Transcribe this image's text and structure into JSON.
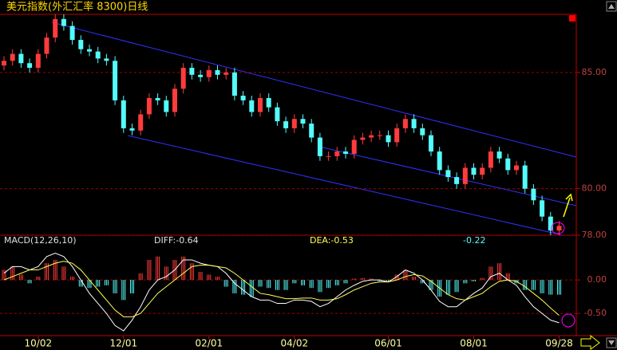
{
  "chart_data": [
    {
      "type": "candlestick",
      "title": "美元指数(外汇汇率 8300)日线",
      "open": [
        85.3,
        85.5,
        85.8,
        85.4,
        85.2,
        85.8,
        86.5,
        87.3,
        87.0,
        86.4,
        86.0,
        85.9,
        85.6,
        85.5,
        83.8,
        82.6,
        82.5,
        83.2,
        83.9,
        83.8,
        83.3,
        84.3,
        85.2,
        84.9,
        84.8,
        85.1,
        84.9,
        85.0,
        84.0,
        83.8,
        83.3,
        83.9,
        83.5,
        82.9,
        82.6,
        83.0,
        82.8,
        82.2,
        81.4,
        81.4,
        81.6,
        81.5,
        82.1,
        82.2,
        82.3,
        82.3,
        82.0,
        82.6,
        83.0,
        82.6,
        82.3,
        81.6,
        80.8,
        80.5,
        80.2,
        80.9,
        80.6,
        80.9,
        81.6,
        81.3,
        80.8,
        81.0,
        80.0,
        79.5,
        78.8,
        78.2
      ],
      "high": [
        85.7,
        86.0,
        86.0,
        85.6,
        86.0,
        86.7,
        87.5,
        87.5,
        87.2,
        86.6,
        86.2,
        86.1,
        85.8,
        85.7,
        84.0,
        82.8,
        83.4,
        84.1,
        84.1,
        84.0,
        84.5,
        85.4,
        85.4,
        85.1,
        85.3,
        85.3,
        85.2,
        85.2,
        84.2,
        84.0,
        84.1,
        84.1,
        83.7,
        83.1,
        83.2,
        83.2,
        83.0,
        82.4,
        81.6,
        81.8,
        81.8,
        82.3,
        82.4,
        82.5,
        82.5,
        82.5,
        82.8,
        83.2,
        83.2,
        82.8,
        82.5,
        81.8,
        81.0,
        80.7,
        81.1,
        81.1,
        81.1,
        81.8,
        81.8,
        81.5,
        81.2,
        81.2,
        80.2,
        79.7,
        79.0,
        78.6
      ],
      "low": [
        85.1,
        85.3,
        85.2,
        85.0,
        85.0,
        85.6,
        86.3,
        86.8,
        86.2,
        85.8,
        85.7,
        85.4,
        85.3,
        83.6,
        82.4,
        82.3,
        82.3,
        83.0,
        83.6,
        83.1,
        83.1,
        84.1,
        84.7,
        84.6,
        84.6,
        84.7,
        84.7,
        83.8,
        83.6,
        83.1,
        83.1,
        83.3,
        82.7,
        82.4,
        82.4,
        82.6,
        82.0,
        81.2,
        81.2,
        81.2,
        81.3,
        81.3,
        81.9,
        82.0,
        82.1,
        81.8,
        81.8,
        82.4,
        82.4,
        82.1,
        81.4,
        80.6,
        80.3,
        80.0,
        80.0,
        80.4,
        80.4,
        80.7,
        81.1,
        80.6,
        80.6,
        79.8,
        79.3,
        78.6,
        78.0,
        78.0
      ],
      "close": [
        85.5,
        85.8,
        85.4,
        85.2,
        85.8,
        86.5,
        87.3,
        87.0,
        86.4,
        86.0,
        85.9,
        85.6,
        85.5,
        83.8,
        82.6,
        82.5,
        83.2,
        83.9,
        83.8,
        83.3,
        84.3,
        85.2,
        84.9,
        84.8,
        85.1,
        84.9,
        85.0,
        84.0,
        83.8,
        83.3,
        83.9,
        83.5,
        82.9,
        82.6,
        83.0,
        82.8,
        82.2,
        81.4,
        81.4,
        81.6,
        81.5,
        82.1,
        82.2,
        82.3,
        82.3,
        82.0,
        82.6,
        83.0,
        82.6,
        82.3,
        81.6,
        80.8,
        80.5,
        80.2,
        80.9,
        80.6,
        80.9,
        81.6,
        81.3,
        80.8,
        81.0,
        80.0,
        79.5,
        78.8,
        78.2,
        78.4
      ],
      "up_color": "#ff3c3c",
      "down_color": "#54fcfc",
      "ylim": [
        78,
        87.5
      ],
      "yticks": [
        {
          "value": 85,
          "label": "85.00"
        },
        {
          "value": 80,
          "label": "80.00"
        },
        {
          "value": 78,
          "label": "78.00"
        }
      ],
      "grid": true
    },
    {
      "type": "macd",
      "indicator": "MACD(12,26,10)",
      "categories": [
        null,
        null,
        null,
        null,
        "10/02",
        null,
        null,
        null,
        null,
        null,
        null,
        null,
        null,
        null,
        "12/01",
        null,
        null,
        null,
        null,
        null,
        null,
        null,
        null,
        null,
        "02/01",
        null,
        null,
        null,
        null,
        null,
        null,
        null,
        null,
        null,
        "04/02",
        null,
        null,
        null,
        null,
        null,
        null,
        null,
        null,
        null,
        null,
        "06/01",
        null,
        null,
        null,
        null,
        null,
        null,
        null,
        null,
        null,
        "08/01",
        null,
        null,
        null,
        null,
        null,
        null,
        null,
        null,
        null,
        "09/28"
      ],
      "values": [
        0.15,
        0.2,
        0.08,
        -0.05,
        0.05,
        0.25,
        0.3,
        0.2,
        0.05,
        -0.1,
        -0.12,
        -0.1,
        -0.08,
        -0.2,
        -0.3,
        -0.2,
        0.1,
        0.3,
        0.35,
        0.2,
        0.3,
        0.35,
        0.25,
        0.12,
        0.08,
        0.05,
        -0.1,
        -0.2,
        -0.22,
        -0.25,
        -0.1,
        -0.12,
        -0.15,
        -0.15,
        -0.05,
        -0.08,
        -0.12,
        -0.18,
        -0.12,
        -0.08,
        -0.05,
        0.02,
        0.03,
        0.02,
        -0.02,
        -0.03,
        0.08,
        0.15,
        0.05,
        -0.05,
        -0.15,
        -0.25,
        -0.22,
        -0.18,
        -0.05,
        -0.02,
        0.03,
        0.2,
        0.25,
        0.1,
        -0.05,
        -0.15,
        -0.15,
        -0.2,
        -0.22,
        -0.22
      ],
      "value_label": "-0.22",
      "up_color": "#ff3c3c",
      "down_color": "#54fcfc",
      "series": [
        {
          "label": "DIFF:-0.64",
          "color": "#ffffff",
          "values": [
            0.1,
            0.2,
            0.2,
            0.15,
            0.2,
            0.35,
            0.4,
            0.35,
            0.2,
            0,
            -0.2,
            -0.35,
            -0.5,
            -0.68,
            -0.76,
            -0.6,
            -0.4,
            -0.15,
            0.0,
            0.05,
            0.15,
            0.3,
            0.3,
            0.25,
            0.22,
            0.2,
            0.1,
            -0.05,
            -0.15,
            -0.25,
            -0.3,
            -0.3,
            -0.35,
            -0.35,
            -0.3,
            -0.3,
            -0.32,
            -0.4,
            -0.35,
            -0.25,
            -0.15,
            -0.08,
            -0.02,
            0.0,
            0.0,
            -0.03,
            0.05,
            0.15,
            0.1,
            0.0,
            -0.15,
            -0.32,
            -0.4,
            -0.4,
            -0.3,
            -0.2,
            -0.12,
            0.05,
            0.1,
            0.0,
            -0.08,
            -0.25,
            -0.4,
            -0.5,
            -0.6,
            -0.64
          ]
        },
        {
          "label": "DEA:-0.53",
          "color": "#ffff54",
          "values": [
            0.0,
            0.05,
            0.1,
            0.15,
            0.15,
            0.2,
            0.25,
            0.28,
            0.25,
            0.15,
            0.0,
            -0.15,
            -0.3,
            -0.45,
            -0.55,
            -0.55,
            -0.5,
            -0.35,
            -0.2,
            -0.1,
            0.0,
            0.1,
            0.2,
            0.22,
            0.22,
            0.2,
            0.18,
            0.1,
            0.0,
            -0.1,
            -0.2,
            -0.22,
            -0.25,
            -0.28,
            -0.28,
            -0.27,
            -0.27,
            -0.3,
            -0.3,
            -0.28,
            -0.22,
            -0.15,
            -0.1,
            -0.05,
            -0.03,
            -0.03,
            0.0,
            0.05,
            0.08,
            0.06,
            -0.02,
            -0.12,
            -0.22,
            -0.28,
            -0.3,
            -0.25,
            -0.2,
            -0.1,
            -0.02,
            0.0,
            -0.02,
            -0.1,
            -0.2,
            -0.3,
            -0.42,
            -0.53
          ]
        }
      ],
      "ylim": [
        -0.82,
        0.49
      ],
      "yticks": [
        {
          "value": 0,
          "label": "0.00"
        },
        {
          "value": -0.5,
          "label": "-0.50"
        }
      ],
      "grid": true
    }
  ]
}
